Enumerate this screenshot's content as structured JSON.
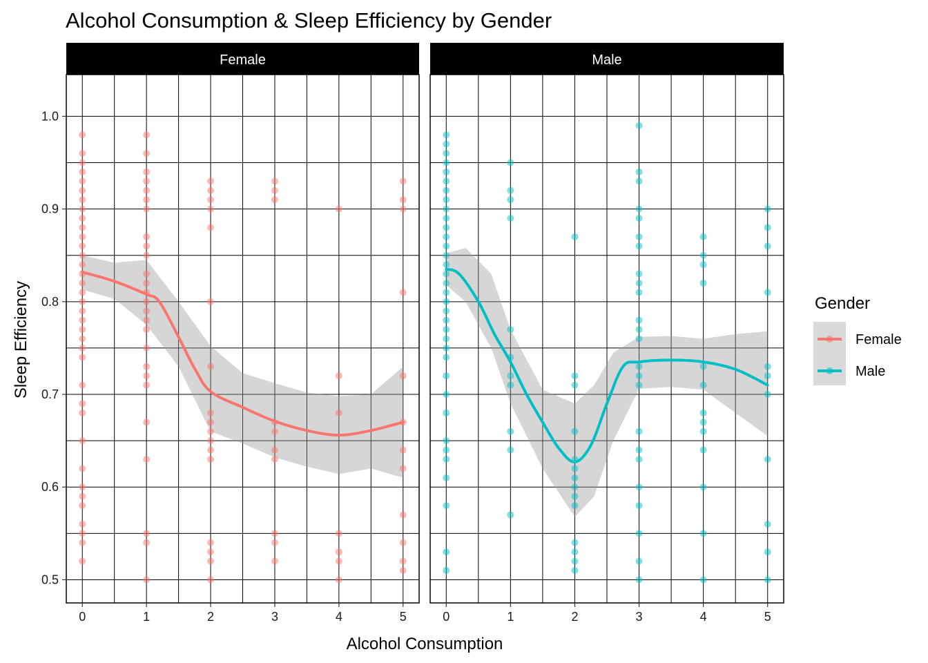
{
  "chart_data": {
    "type": "scatter",
    "title": "Alcohol Consumption & Sleep Efficiency by Gender",
    "xlabel": "Alcohol Consumption",
    "ylabel": "Sleep Efficiency",
    "xlim": [
      -0.25,
      5.25
    ],
    "ylim": [
      0.475,
      1.045
    ],
    "x_ticks": [
      0,
      1,
      2,
      3,
      4,
      5
    ],
    "y_ticks": [
      0.5,
      0.6,
      0.7,
      0.8,
      0.9,
      1.0
    ],
    "y_tick_labels": [
      "0.5",
      "0.6",
      "0.7",
      "0.8",
      "0.9",
      "1.0"
    ],
    "grid": true,
    "legend": {
      "title": "Gender",
      "position": "right",
      "entries": [
        {
          "name": "Female",
          "color": "#F8766D"
        },
        {
          "name": "Male",
          "color": "#00BFC4"
        }
      ]
    },
    "panels": [
      {
        "name": "Female",
        "color": "#F8766D",
        "points": [
          [
            0,
            0.98
          ],
          [
            0,
            0.96
          ],
          [
            0,
            0.95
          ],
          [
            0,
            0.94
          ],
          [
            0,
            0.93
          ],
          [
            0,
            0.92
          ],
          [
            0,
            0.91
          ],
          [
            0,
            0.9
          ],
          [
            0,
            0.89
          ],
          [
            0,
            0.88
          ],
          [
            0,
            0.87
          ],
          [
            0,
            0.86
          ],
          [
            0,
            0.85
          ],
          [
            0,
            0.84
          ],
          [
            0,
            0.83
          ],
          [
            0,
            0.82
          ],
          [
            0,
            0.81
          ],
          [
            0,
            0.8
          ],
          [
            0,
            0.79
          ],
          [
            0,
            0.78
          ],
          [
            0,
            0.77
          ],
          [
            0,
            0.76
          ],
          [
            0,
            0.75
          ],
          [
            0,
            0.74
          ],
          [
            0,
            0.71
          ],
          [
            0,
            0.69
          ],
          [
            0,
            0.68
          ],
          [
            0,
            0.65
          ],
          [
            0,
            0.62
          ],
          [
            0,
            0.6
          ],
          [
            0,
            0.59
          ],
          [
            0,
            0.58
          ],
          [
            0,
            0.56
          ],
          [
            0,
            0.55
          ],
          [
            0,
            0.54
          ],
          [
            0,
            0.52
          ],
          [
            1,
            0.98
          ],
          [
            1,
            0.96
          ],
          [
            1,
            0.94
          ],
          [
            1,
            0.93
          ],
          [
            1,
            0.92
          ],
          [
            1,
            0.91
          ],
          [
            1,
            0.9
          ],
          [
            1,
            0.87
          ],
          [
            1,
            0.86
          ],
          [
            1,
            0.85
          ],
          [
            1,
            0.83
          ],
          [
            1,
            0.82
          ],
          [
            1,
            0.81
          ],
          [
            1,
            0.8
          ],
          [
            1,
            0.79
          ],
          [
            1,
            0.78
          ],
          [
            1,
            0.77
          ],
          [
            1,
            0.75
          ],
          [
            1,
            0.73
          ],
          [
            1,
            0.72
          ],
          [
            1,
            0.71
          ],
          [
            1,
            0.67
          ],
          [
            1,
            0.63
          ],
          [
            1,
            0.55
          ],
          [
            1,
            0.54
          ],
          [
            1,
            0.5
          ],
          [
            2,
            0.93
          ],
          [
            2,
            0.92
          ],
          [
            2,
            0.91
          ],
          [
            2,
            0.9
          ],
          [
            2,
            0.88
          ],
          [
            2,
            0.8
          ],
          [
            2,
            0.73
          ],
          [
            2,
            0.68
          ],
          [
            2,
            0.67
          ],
          [
            2,
            0.66
          ],
          [
            2,
            0.65
          ],
          [
            2,
            0.64
          ],
          [
            2,
            0.63
          ],
          [
            2,
            0.54
          ],
          [
            2,
            0.53
          ],
          [
            2,
            0.52
          ],
          [
            2,
            0.5
          ],
          [
            3,
            0.93
          ],
          [
            3,
            0.92
          ],
          [
            3,
            0.91
          ],
          [
            3,
            0.67
          ],
          [
            3,
            0.66
          ],
          [
            3,
            0.64
          ],
          [
            3,
            0.63
          ],
          [
            3,
            0.55
          ],
          [
            3,
            0.54
          ],
          [
            3,
            0.52
          ],
          [
            4,
            0.9
          ],
          [
            4,
            0.72
          ],
          [
            4,
            0.68
          ],
          [
            4,
            0.55
          ],
          [
            4,
            0.53
          ],
          [
            4,
            0.52
          ],
          [
            4,
            0.5
          ],
          [
            5,
            0.93
          ],
          [
            5,
            0.91
          ],
          [
            5,
            0.9
          ],
          [
            5,
            0.81
          ],
          [
            5,
            0.72
          ],
          [
            5,
            0.67
          ],
          [
            5,
            0.64
          ],
          [
            5,
            0.62
          ],
          [
            5,
            0.57
          ],
          [
            5,
            0.54
          ],
          [
            5,
            0.52
          ],
          [
            5,
            0.51
          ]
        ],
        "smooth": [
          [
            0,
            0.832
          ],
          [
            0.5,
            0.822
          ],
          [
            1,
            0.808
          ],
          [
            1.2,
            0.8
          ],
          [
            1.5,
            0.762
          ],
          [
            1.75,
            0.728
          ],
          [
            2,
            0.703
          ],
          [
            2.5,
            0.686
          ],
          [
            3,
            0.671
          ],
          [
            3.5,
            0.661
          ],
          [
            4,
            0.656
          ],
          [
            4.5,
            0.661
          ],
          [
            5,
            0.67
          ]
        ],
        "band_upper": [
          [
            0,
            0.85
          ],
          [
            0.5,
            0.842
          ],
          [
            1,
            0.845
          ],
          [
            1.5,
            0.8
          ],
          [
            2,
            0.752
          ],
          [
            2.5,
            0.723
          ],
          [
            3,
            0.712
          ],
          [
            3.5,
            0.702
          ],
          [
            4,
            0.698
          ],
          [
            4.5,
            0.7
          ],
          [
            5,
            0.73
          ]
        ],
        "band_lower": [
          [
            0,
            0.813
          ],
          [
            0.5,
            0.803
          ],
          [
            1,
            0.775
          ],
          [
            1.5,
            0.73
          ],
          [
            2,
            0.66
          ],
          [
            2.5,
            0.647
          ],
          [
            3,
            0.632
          ],
          [
            3.5,
            0.622
          ],
          [
            4,
            0.614
          ],
          [
            4.5,
            0.62
          ],
          [
            5,
            0.61
          ]
        ]
      },
      {
        "name": "Male",
        "color": "#00BFC4",
        "points": [
          [
            0,
            0.98
          ],
          [
            0,
            0.97
          ],
          [
            0,
            0.96
          ],
          [
            0,
            0.95
          ],
          [
            0,
            0.94
          ],
          [
            0,
            0.93
          ],
          [
            0,
            0.92
          ],
          [
            0,
            0.91
          ],
          [
            0,
            0.9
          ],
          [
            0,
            0.89
          ],
          [
            0,
            0.88
          ],
          [
            0,
            0.87
          ],
          [
            0,
            0.86
          ],
          [
            0,
            0.85
          ],
          [
            0,
            0.84
          ],
          [
            0,
            0.83
          ],
          [
            0,
            0.82
          ],
          [
            0,
            0.81
          ],
          [
            0,
            0.8
          ],
          [
            0,
            0.79
          ],
          [
            0,
            0.78
          ],
          [
            0,
            0.77
          ],
          [
            0,
            0.76
          ],
          [
            0,
            0.75
          ],
          [
            0,
            0.74
          ],
          [
            0,
            0.72
          ],
          [
            0,
            0.7
          ],
          [
            0,
            0.68
          ],
          [
            0,
            0.65
          ],
          [
            0,
            0.64
          ],
          [
            0,
            0.63
          ],
          [
            0,
            0.61
          ],
          [
            0,
            0.58
          ],
          [
            0,
            0.53
          ],
          [
            0,
            0.51
          ],
          [
            1,
            0.95
          ],
          [
            1,
            0.92
          ],
          [
            1,
            0.91
          ],
          [
            1,
            0.89
          ],
          [
            1,
            0.77
          ],
          [
            1,
            0.74
          ],
          [
            1,
            0.72
          ],
          [
            1,
            0.71
          ],
          [
            1,
            0.66
          ],
          [
            1,
            0.64
          ],
          [
            1,
            0.57
          ],
          [
            2,
            0.87
          ],
          [
            2,
            0.72
          ],
          [
            2,
            0.71
          ],
          [
            2,
            0.66
          ],
          [
            2,
            0.63
          ],
          [
            2,
            0.62
          ],
          [
            2,
            0.61
          ],
          [
            2,
            0.6
          ],
          [
            2,
            0.59
          ],
          [
            2,
            0.58
          ],
          [
            2,
            0.54
          ],
          [
            2,
            0.53
          ],
          [
            2,
            0.52
          ],
          [
            2,
            0.51
          ],
          [
            3,
            0.99
          ],
          [
            3,
            0.94
          ],
          [
            3,
            0.93
          ],
          [
            3,
            0.9
          ],
          [
            3,
            0.89
          ],
          [
            3,
            0.87
          ],
          [
            3,
            0.86
          ],
          [
            3,
            0.83
          ],
          [
            3,
            0.82
          ],
          [
            3,
            0.81
          ],
          [
            3,
            0.78
          ],
          [
            3,
            0.77
          ],
          [
            3,
            0.76
          ],
          [
            3,
            0.73
          ],
          [
            3,
            0.72
          ],
          [
            3,
            0.71
          ],
          [
            3,
            0.66
          ],
          [
            3,
            0.64
          ],
          [
            3,
            0.63
          ],
          [
            3,
            0.6
          ],
          [
            3,
            0.58
          ],
          [
            3,
            0.55
          ],
          [
            3,
            0.52
          ],
          [
            3,
            0.5
          ],
          [
            4,
            0.87
          ],
          [
            4,
            0.85
          ],
          [
            4,
            0.84
          ],
          [
            4,
            0.82
          ],
          [
            4,
            0.73
          ],
          [
            4,
            0.71
          ],
          [
            4,
            0.68
          ],
          [
            4,
            0.67
          ],
          [
            4,
            0.66
          ],
          [
            4,
            0.64
          ],
          [
            4,
            0.6
          ],
          [
            4,
            0.55
          ],
          [
            4,
            0.5
          ],
          [
            5,
            0.9
          ],
          [
            5,
            0.88
          ],
          [
            5,
            0.86
          ],
          [
            5,
            0.81
          ],
          [
            5,
            0.73
          ],
          [
            5,
            0.72
          ],
          [
            5,
            0.7
          ],
          [
            5,
            0.63
          ],
          [
            5,
            0.56
          ],
          [
            5,
            0.53
          ],
          [
            5,
            0.5
          ]
        ],
        "smooth": [
          [
            0,
            0.835
          ],
          [
            0.2,
            0.83
          ],
          [
            0.5,
            0.8
          ],
          [
            0.75,
            0.765
          ],
          [
            1,
            0.735
          ],
          [
            1.25,
            0.7
          ],
          [
            1.5,
            0.67
          ],
          [
            1.75,
            0.642
          ],
          [
            2,
            0.627
          ],
          [
            2.25,
            0.645
          ],
          [
            2.5,
            0.69
          ],
          [
            2.75,
            0.73
          ],
          [
            3,
            0.735
          ],
          [
            3.5,
            0.737
          ],
          [
            4,
            0.735
          ],
          [
            4.5,
            0.727
          ],
          [
            5,
            0.71
          ]
        ],
        "band_upper": [
          [
            0,
            0.852
          ],
          [
            0.3,
            0.858
          ],
          [
            0.7,
            0.83
          ],
          [
            1,
            0.77
          ],
          [
            1.5,
            0.705
          ],
          [
            2,
            0.69
          ],
          [
            2.3,
            0.71
          ],
          [
            2.6,
            0.745
          ],
          [
            3,
            0.762
          ],
          [
            3.5,
            0.763
          ],
          [
            4,
            0.76
          ],
          [
            4.5,
            0.765
          ],
          [
            5,
            0.768
          ]
        ],
        "band_lower": [
          [
            0,
            0.818
          ],
          [
            0.3,
            0.8
          ],
          [
            0.7,
            0.75
          ],
          [
            1,
            0.69
          ],
          [
            1.5,
            0.62
          ],
          [
            2,
            0.568
          ],
          [
            2.3,
            0.59
          ],
          [
            2.6,
            0.65
          ],
          [
            3,
            0.706
          ],
          [
            3.5,
            0.708
          ],
          [
            4,
            0.705
          ],
          [
            4.5,
            0.68
          ],
          [
            5,
            0.655
          ]
        ]
      }
    ]
  }
}
